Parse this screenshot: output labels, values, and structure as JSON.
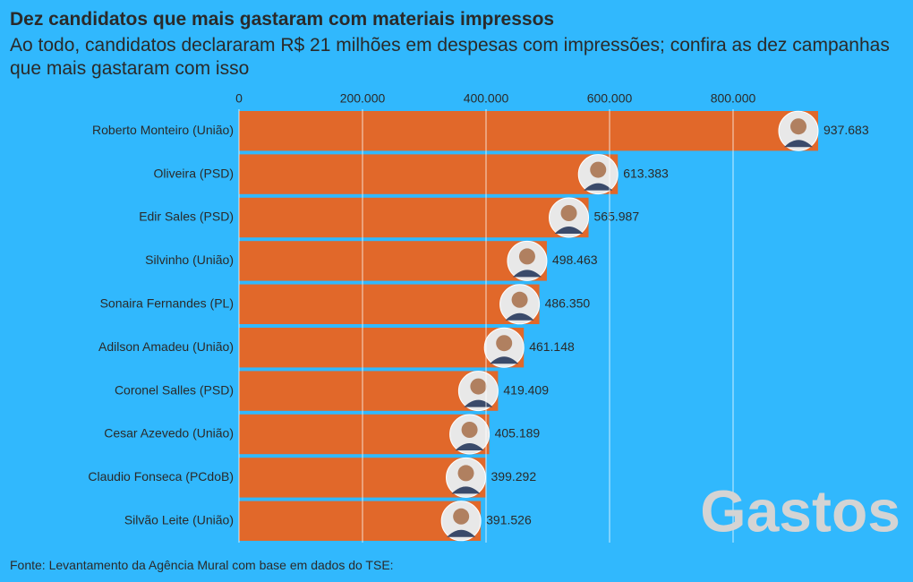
{
  "chart_data": {
    "type": "bar",
    "orientation": "horizontal",
    "title": "Dez candidatos que mais gastaram com materiais impressos",
    "subtitle": "Ao todo, candidatos declararam R$ 21 milhões em despesas com impressões; confira as dez campanhas que mais gastaram com isso",
    "categories": [
      "Roberto Monteiro (União)",
      "Oliveira (PSD)",
      "Edir Sales (PSD)",
      "Silvinho (União)",
      "Sonaira Fernandes (PL)",
      "Adilson Amadeu (União)",
      "Coronel Salles (PSD)",
      "Cesar Azevedo (União)",
      "Claudio Fonseca (PCdoB)",
      "Silvão Leite (União)"
    ],
    "values": [
      937683,
      613383,
      565987,
      498463,
      486350,
      461148,
      419409,
      405189,
      399292,
      391526
    ],
    "value_labels": [
      "937.683",
      "613.383",
      "565.987",
      "498.463",
      "486.350",
      "461.148",
      "419.409",
      "405.189",
      "399.292",
      "391.526"
    ],
    "color": "#e1682a",
    "xlim": [
      0,
      1000000
    ],
    "xticks": [
      0,
      {
        "value": 200000,
        "label": "200.000"
      },
      {
        "value": 400000,
        "label": "400.000"
      },
      {
        "value": 600000,
        "label": "600.000"
      },
      {
        "value": 800000,
        "label": "800.000"
      }
    ],
    "grid": true,
    "annotation": "Gastos",
    "source": "Fonte: Levantamento da Agência Mural com base em dados do TSE:"
  }
}
